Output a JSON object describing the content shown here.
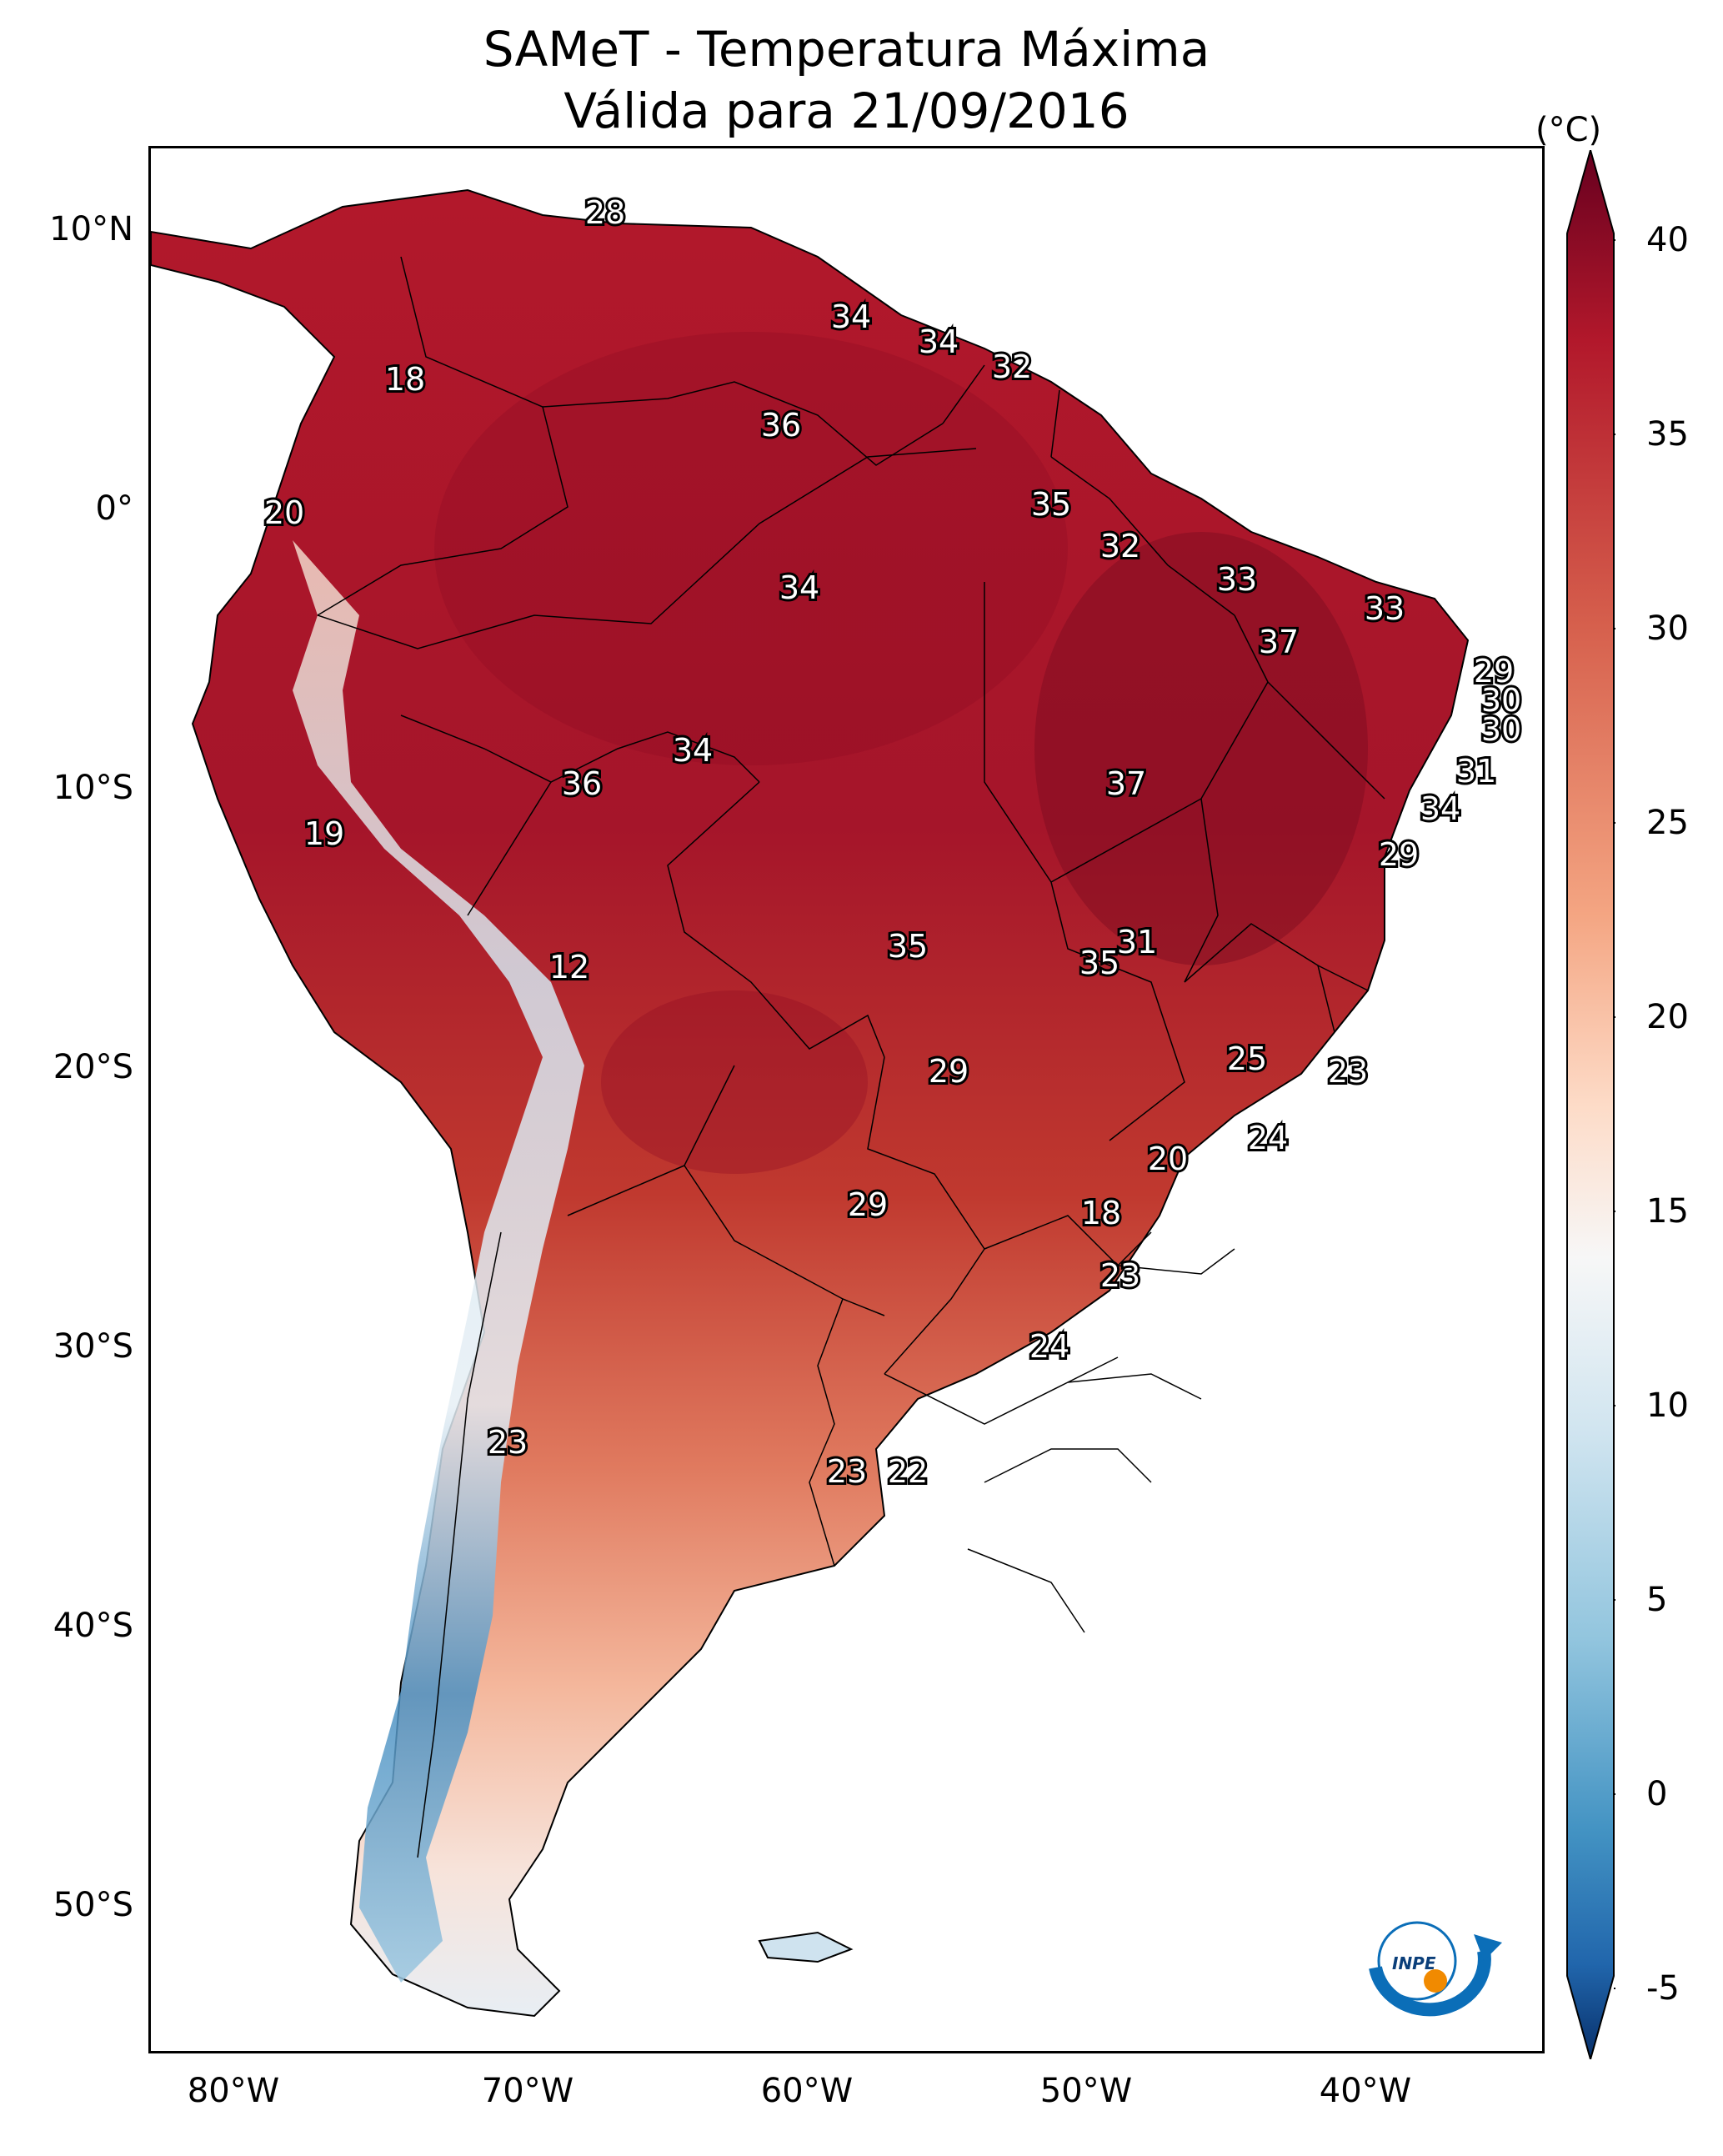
{
  "title_line1": "SAMeT - Temperatura Máxima",
  "title_line2": "Válida para 21/09/2016",
  "colorbar": {
    "unit": "(°C)",
    "ticks": [
      "40",
      "35",
      "30",
      "25",
      "20",
      "15",
      "10",
      "5",
      "0",
      "-5"
    ],
    "range": [
      -5,
      40
    ],
    "colors": [
      "#08306b",
      "#2166ac",
      "#4393c3",
      "#92c5de",
      "#d1e5f0",
      "#f7f7f7",
      "#fddbc7",
      "#f4a582",
      "#d6604d",
      "#b2182b",
      "#67001f"
    ]
  },
  "axes": {
    "lat_labels": [
      "10°N",
      "0°",
      "10°S",
      "20°S",
      "30°S",
      "40°S",
      "50°S"
    ],
    "lon_labels": [
      "80°W",
      "70°W",
      "60°W",
      "50°W",
      "40°W"
    ]
  },
  "temperature_labels": [
    "28",
    "34",
    "34",
    "32",
    "18",
    "36",
    "35",
    "20",
    "32",
    "33",
    "34",
    "33",
    "37",
    "29",
    "30",
    "30",
    "34",
    "36",
    "37",
    "31",
    "19",
    "34",
    "29",
    "12",
    "35",
    "31",
    "35",
    "25",
    "29",
    "23",
    "24",
    "20",
    "29",
    "18",
    "23",
    "24",
    "23",
    "23",
    "22"
  ],
  "logo": {
    "text": "INPE"
  }
}
